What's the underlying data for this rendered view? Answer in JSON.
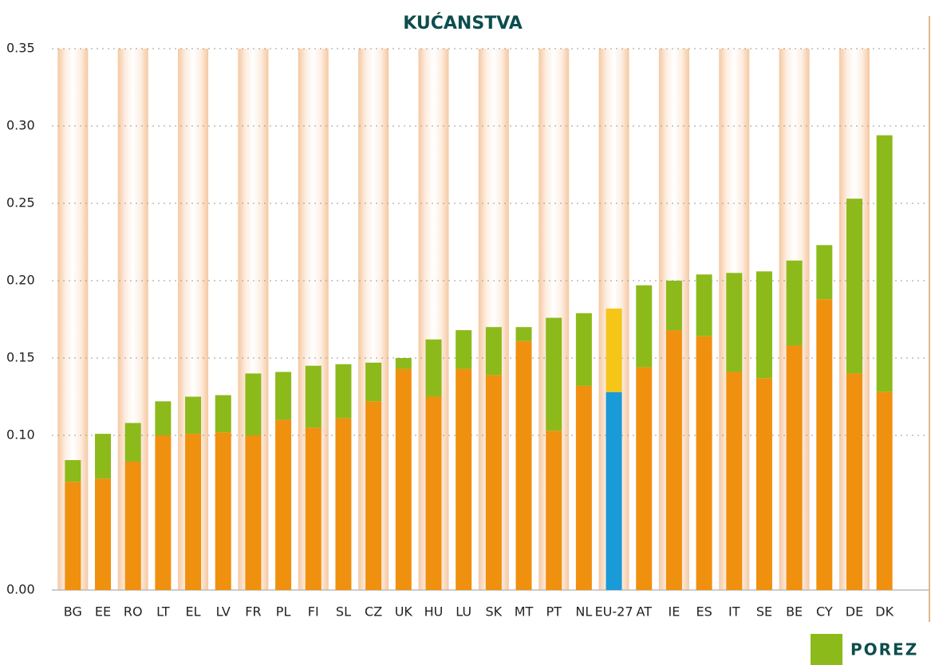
{
  "chart_data": {
    "type": "stacked_bar",
    "title": "KUĆANSTVA",
    "categories": [
      "BG",
      "EE",
      "RO",
      "LT",
      "EL",
      "LV",
      "FR",
      "PL",
      "FI",
      "SL",
      "CZ",
      "UK",
      "HU",
      "LU",
      "SK",
      "MT",
      "PT",
      "NL",
      "EU-27",
      "AT",
      "IE",
      "ES",
      "IT",
      "SE",
      "BE",
      "CY",
      "DE",
      "DK"
    ],
    "series": [
      {
        "color": "#f0900f",
        "values": [
          0.07,
          0.072,
          0.083,
          0.1,
          0.101,
          0.102,
          0.1,
          0.11,
          0.105,
          0.111,
          0.122,
          0.143,
          0.125,
          0.143,
          0.139,
          0.161,
          0.103,
          0.132,
          0.128,
          0.144,
          0.168,
          0.164,
          0.141,
          0.137,
          0.158,
          0.188,
          0.14,
          0.128
        ]
      },
      {
        "name": "POREZ",
        "color": "#8cba1a",
        "values": [
          0.014,
          0.029,
          0.025,
          0.022,
          0.024,
          0.024,
          0.04,
          0.031,
          0.04,
          0.035,
          0.025,
          0.007,
          0.037,
          0.025,
          0.031,
          0.009,
          0.073,
          0.047,
          0.054,
          0.053,
          0.032,
          0.04,
          0.064,
          0.069,
          0.055,
          0.035,
          0.113,
          0.166
        ]
      }
    ],
    "highlight_category": "EU-27",
    "highlight_colors": [
      "#1a9ad6",
      "#f5c518"
    ],
    "ylim": [
      0,
      0.35
    ],
    "yticks": [
      {
        "value": 0,
        "label": "0.00"
      },
      {
        "value": 0.1,
        "label": "0.10"
      },
      0.15,
      {
        "value": 0.2,
        "label": "0.20"
      },
      0.25,
      {
        "value": 0.3,
        "label": "0.30"
      },
      0.35
    ],
    "grid": true
  }
}
